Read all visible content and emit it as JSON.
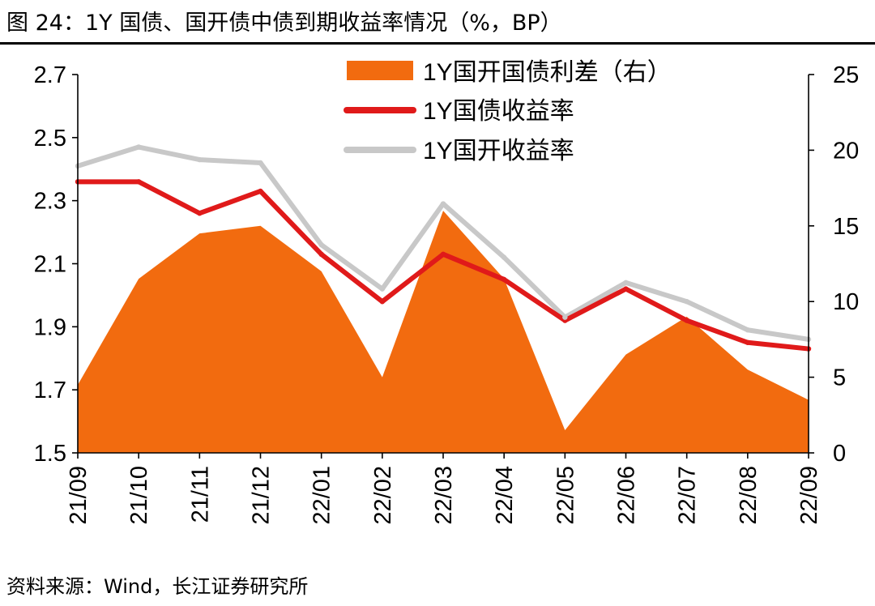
{
  "title": "图 24：1Y 国债、国开债中债到期收益率情况（%，BP）",
  "source": "资料来源：Wind，长江证券研究所",
  "colors": {
    "spread": "#F26B0F",
    "gov": "#E01A1A",
    "cdb": "#C8C8C8",
    "axis": "#000000"
  },
  "chart_data": {
    "type": "line",
    "x": [
      "21/09",
      "21/10",
      "21/11",
      "21/12",
      "22/01",
      "22/02",
      "22/03",
      "22/04",
      "22/05",
      "22/06",
      "22/07",
      "22/08",
      "22/09"
    ],
    "left_axis": {
      "ylim": [
        1.5,
        2.7
      ],
      "ticks": [
        "1.5",
        "1.7",
        "1.9",
        "2.1",
        "2.3",
        "2.5",
        "2.7"
      ]
    },
    "right_axis": {
      "ylim": [
        0,
        25
      ],
      "ticks": [
        "0",
        "5",
        "10",
        "15",
        "20",
        "25"
      ]
    },
    "legend_position": "top-right",
    "series": [
      {
        "name": "1Y国开国债利差（右）",
        "kind": "area",
        "axis": "right",
        "values": [
          4.5,
          11.5,
          14.5,
          15.0,
          12.0,
          5.0,
          16.0,
          11.5,
          1.5,
          6.5,
          9.0,
          5.5,
          3.5
        ]
      },
      {
        "name": "1Y国债收益率",
        "kind": "line",
        "axis": "left",
        "values": [
          2.36,
          2.36,
          2.26,
          2.33,
          2.13,
          1.98,
          2.13,
          2.05,
          1.92,
          2.02,
          1.92,
          1.85,
          1.83
        ]
      },
      {
        "name": "1Y国开收益率",
        "kind": "line",
        "axis": "left",
        "values": [
          2.41,
          2.47,
          2.43,
          2.42,
          2.16,
          2.02,
          2.29,
          2.12,
          1.93,
          2.04,
          1.98,
          1.89,
          1.86
        ]
      }
    ]
  }
}
